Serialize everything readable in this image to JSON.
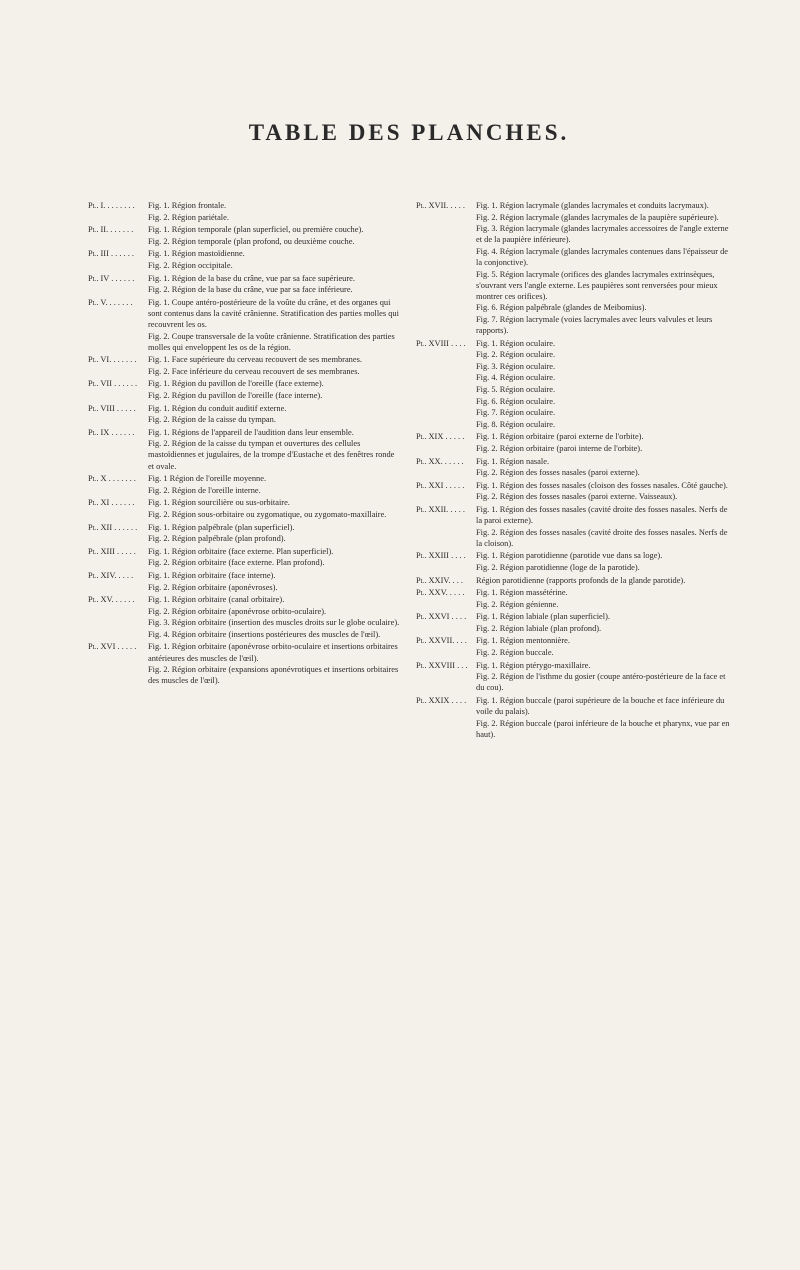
{
  "title": "TABLE DES PLANCHES.",
  "left": [
    {
      "plate": "Pl. I. . . . . . . .",
      "figs": [
        "Fig. 1. Région frontale.",
        "Fig. 2. Région pariétale."
      ]
    },
    {
      "plate": "Pl. II. . . . . . .",
      "figs": [
        "Fig. 1. Région temporale (plan superficiel, ou première couche).",
        "Fig. 2. Région temporale (plan profond, ou deuxième couche."
      ]
    },
    {
      "plate": "Pl. III . . . . . .",
      "figs": [
        "Fig. 1. Région mastoïdienne.",
        "Fig. 2. Région occipitale."
      ]
    },
    {
      "plate": "Pl. IV . . . . . .",
      "figs": [
        "Fig. 1. Région de la base du crâne, vue par sa face supérieure.",
        "Fig. 2. Région de la base du crâne, vue par sa face inférieure."
      ]
    },
    {
      "plate": "Pl. V. . . . . . .",
      "figs": [
        "Fig. 1. Coupe antéro-postérieure de la voûte du crâne, et des organes qui sont contenus dans la cavité crânienne. Stratification des parties molles qui recouvrent les os.",
        "Fig. 2. Coupe transversale de la voûte crânienne. Stratification des parties molles qui enveloppent les os de la région."
      ]
    },
    {
      "plate": "Pl. VI. . . . . . .",
      "figs": [
        "Fig. 1. Face supérieure du cerveau recouvert de ses membranes.",
        "Fig. 2. Face inférieure du cerveau recouvert de ses membranes."
      ]
    },
    {
      "plate": "Pl. VII . . . . . .",
      "figs": [
        "Fig. 1. Région du pavillon de l'oreille (face externe).",
        "Fig. 2. Région du pavillon de l'oreille (face interne)."
      ]
    },
    {
      "plate": "Pl. VIII . . . . .",
      "figs": [
        "Fig. 1. Région du conduit auditif externe.",
        "Fig. 2. Région de la caisse du tympan."
      ]
    },
    {
      "plate": "Pl. IX . . . . . .",
      "figs": [
        "Fig. 1. Régions de l'appareil de l'audition dans leur ensemble.",
        "Fig. 2. Région de la caisse du tympan et ouvertures des cellules mastoïdiennes et jugulaires, de la trompe d'Eustache et des fenêtres ronde et ovale."
      ]
    },
    {
      "plate": "Pl. X . . . . . . .",
      "figs": [
        "Fig. 1 Région de l'oreille moyenne.",
        "Fig. 2. Région de l'oreille interne."
      ]
    },
    {
      "plate": "Pl. XI . . . . . .",
      "figs": [
        "Fig. 1. Région sourcilière ou sus-orbitaire.",
        "Fig. 2. Région sous-orbitaire ou zygomatique, ou zygomato-maxillaire."
      ]
    },
    {
      "plate": "Pl. XII . . . . . .",
      "figs": [
        "Fig. 1. Région palpébrale (plan superficiel).",
        "Fig. 2. Région palpébrale (plan profond)."
      ]
    },
    {
      "plate": "Pl. XIII . . . . .",
      "figs": [
        "Fig. 1. Région orbitaire (face externe. Plan superficiel).",
        "Fig. 2. Région orbitaire (face externe. Plan profond)."
      ]
    },
    {
      "plate": "Pl. XIV. . . . .",
      "figs": [
        "Fig. 1. Région orbitaire (face interne).",
        "Fig. 2. Région orbitaire (aponévroses)."
      ]
    },
    {
      "plate": "Pl. XV. . . . . .",
      "figs": [
        "Fig. 1. Région orbitaire (canal orbitaire).",
        "Fig. 2. Région orbitaire (aponévrose orbito-oculaire).",
        "Fig. 3. Région orbitaire (insertion des muscles droits sur le globe oculaire).",
        "Fig. 4. Région orbitaire (insertions postérieures des muscles de l'œil)."
      ]
    },
    {
      "plate": "Pl. XVI . . . . .",
      "figs": [
        "Fig. 1. Région orbitaire (aponévrose orbito-oculaire et insertions orbitaires antérieures des muscles de l'œil).",
        "Fig. 2. Région orbitaire (expansions aponévrotiques et insertions orbitaires des muscles de l'œil)."
      ]
    }
  ],
  "right": [
    {
      "plate": "Pl. XVII. . . . .",
      "figs": [
        "Fig. 1. Région lacrymale (glandes lacrymales et conduits lacrymaux).",
        "Fig. 2. Région lacrymale (glandes lacrymales de la paupière supérieure).",
        "Fig. 3. Région lacrymale (glandes lacrymales accessoires de l'angle externe et de la paupière inférieure).",
        "Fig. 4. Région lacrymale (glandes lacrymales contenues dans l'épaisseur de la conjonctive).",
        "Fig. 5. Région lacrymale (orifices des glandes lacrymales extrinsèques, s'ouvrant vers l'angle externe. Les paupières sont renversées pour mieux montrer ces orifices).",
        "Fig. 6. Région palpébrale (glandes de Meibomius).",
        "Fig. 7. Région lacrymale (voies lacrymales avec leurs valvules et leurs rapports)."
      ]
    },
    {
      "plate": "Pl. XVIII . . . .",
      "figs": [
        "Fig. 1. Région oculaire.",
        "Fig. 2. Région oculaire.",
        "Fig. 3. Région oculaire.",
        "Fig. 4. Région oculaire.",
        "Fig. 5. Région oculaire.",
        "Fig. 6. Région oculaire.",
        "Fig. 7. Région oculaire.",
        "Fig. 8. Région oculaire."
      ]
    },
    {
      "plate": "Pl. XIX . . . . .",
      "figs": [
        "Fig. 1. Région orbitaire (paroi externe de l'orbite).",
        "Fig. 2. Région orbitaire (paroi interne de l'orbite)."
      ]
    },
    {
      "plate": "Pl. XX. . . . . .",
      "figs": [
        "Fig. 1. Région nasale.",
        "Fig. 2. Région des fosses nasales (paroi externe)."
      ]
    },
    {
      "plate": "Pl. XXI . . . . .",
      "figs": [
        "Fig. 1. Région des fosses nasales (cloison des fosses nasales. Côté gauche).",
        "Fig. 2. Région des fosses nasales (paroi externe. Vaisseaux)."
      ]
    },
    {
      "plate": "Pl. XXII. . . . .",
      "figs": [
        "Fig. 1. Région des fosses nasales (cavité droite des fosses nasales. Nerfs de la paroi externe).",
        "Fig. 2. Région des fosses nasales (cavité droite des fosses nasales. Nerfs de la cloison)."
      ]
    },
    {
      "plate": "Pl. XXIII . . . .",
      "figs": [
        "Fig. 1. Région parotidienne (parotide vue dans sa loge).",
        "Fig. 2. Région parotidienne (loge de la parotide)."
      ]
    },
    {
      "plate": "Pl. XXIV. . . .",
      "figs": [
        "Région parotidienne (rapports profonds de la glande parotide)."
      ]
    },
    {
      "plate": "Pl. XXV. . . . .",
      "figs": [
        "Fig. 1. Région massétérine.",
        "Fig. 2. Région génienne."
      ]
    },
    {
      "plate": "Pl. XXVI . . . .",
      "figs": [
        "Fig. 1. Région labiale (plan superficiel).",
        "Fig. 2. Région labiale (plan profond)."
      ]
    },
    {
      "plate": "Pl. XXVII. . . .",
      "figs": [
        "Fig. 1. Région mentonnière.",
        "Fig. 2. Région buccale."
      ]
    },
    {
      "plate": "Pl. XXVIII . . .",
      "figs": [
        "Fig. 1. Région ptérygo-maxillaire.",
        "Fig. 2. Région de l'isthme du gosier (coupe antéro-postérieure de la face et du cou)."
      ]
    },
    {
      "plate": "Pl. XXIX . . . .",
      "figs": [
        "Fig. 1. Région buccale (paroi supérieure de la bouche et face inférieure du voile du palais).",
        "Fig. 2. Région buccale (paroi inférieure de la bouche et pharynx, vue par en haut)."
      ]
    }
  ]
}
